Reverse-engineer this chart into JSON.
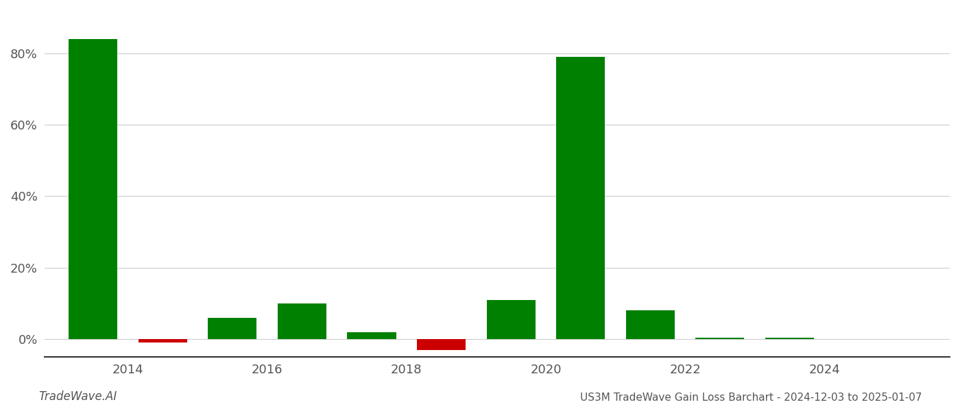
{
  "bar_positions": [
    2013.5,
    2014.5,
    2015.5,
    2016.5,
    2017.5,
    2018.5,
    2019.5,
    2020.5,
    2021.5,
    2022.5,
    2023.5,
    2024.5
  ],
  "values": [
    0.84,
    -0.01,
    0.06,
    0.1,
    0.02,
    -0.03,
    0.11,
    0.79,
    0.08,
    0.005,
    0.005,
    0.0
  ],
  "colors": [
    "#008000",
    "#cc0000",
    "#008000",
    "#008000",
    "#008000",
    "#cc0000",
    "#008000",
    "#008000",
    "#008000",
    "#008000",
    "#008000",
    "#008000"
  ],
  "title": "US3M TradeWave Gain Loss Barchart - 2024-12-03 to 2025-01-07",
  "watermark": "TradeWave.AI",
  "xlim": [
    2012.8,
    2025.8
  ],
  "ylim": [
    -0.05,
    0.92
  ],
  "yticks": [
    0.0,
    0.2,
    0.4,
    0.6,
    0.8
  ],
  "xticks": [
    2014,
    2016,
    2018,
    2020,
    2022,
    2024
  ],
  "xtick_labels": [
    "2014",
    "2016",
    "2018",
    "2020",
    "2022",
    "2024"
  ],
  "background_color": "#ffffff",
  "grid_color": "#cccccc",
  "bar_width": 0.7
}
